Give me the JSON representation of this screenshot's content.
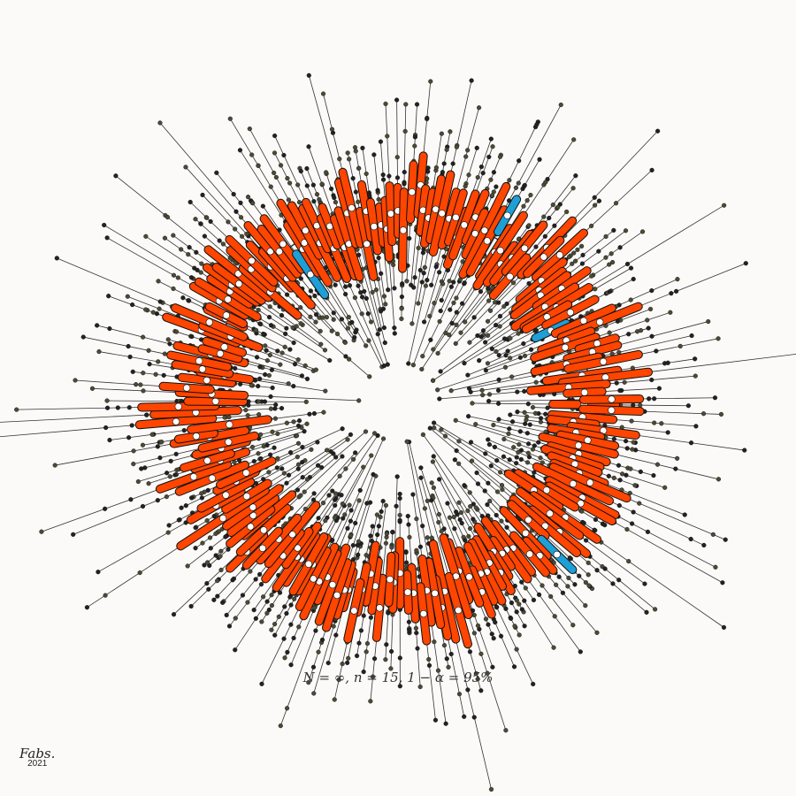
{
  "chart_data": {
    "type": "scatter",
    "layout": "radial confidence intervals",
    "caption": "N = ∞, n = 15, 1 − α = 95%",
    "population_size": "∞",
    "sample_size": 15,
    "confidence_level": 0.95,
    "colors": {
      "interval_covering": "#ff4500",
      "interval_missing": "#1e9fd6",
      "sample_point": "#4a4a36",
      "mean_marker": "#ffffff",
      "ray_line": "#333333",
      "true_value_circle": "#333333",
      "background": "#fcfaf8"
    }
  },
  "signature": {
    "name": "Fabs.",
    "year": "2021"
  }
}
